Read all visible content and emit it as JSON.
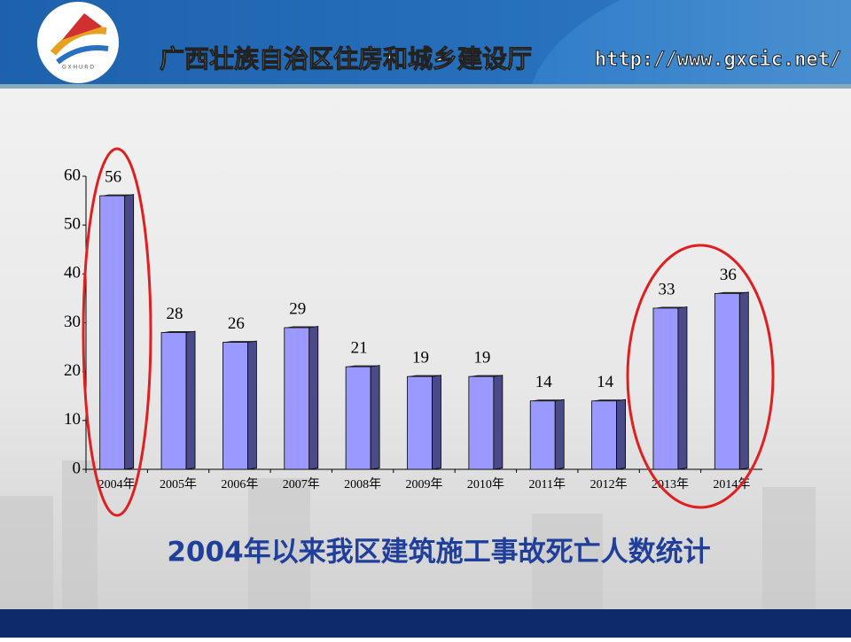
{
  "header": {
    "title": "广西壮族自治区住房和城乡建设厅",
    "url": "http://www.gxcic.net/",
    "logo_text": "G·X·H·U·R·D"
  },
  "chart_data": {
    "type": "bar",
    "title": "2004年以来我区建筑施工事故死亡人数统计",
    "categories": [
      "2004年",
      "2005年",
      "2006年",
      "2007年",
      "2008年",
      "2009年",
      "2010年",
      "2011年",
      "2012年",
      "2013年",
      "2014年"
    ],
    "values": [
      56,
      28,
      26,
      29,
      21,
      19,
      19,
      14,
      14,
      33,
      36
    ],
    "color": "#9999ff",
    "ylim": [
      0,
      60
    ],
    "yticks": [
      0,
      10,
      20,
      30,
      40,
      50,
      60
    ],
    "grid": false
  }
}
